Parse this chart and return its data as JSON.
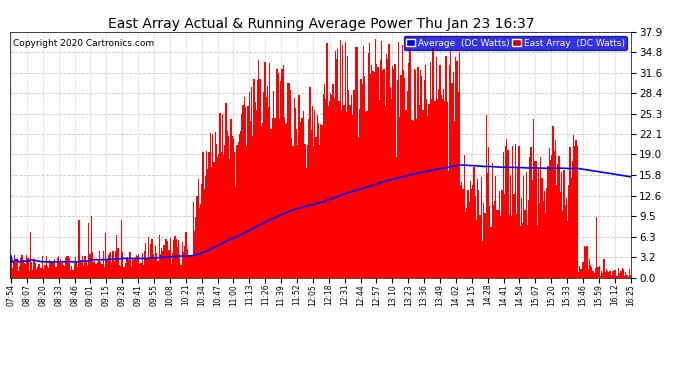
{
  "title": "East Array Actual & Running Average Power Thu Jan 23 16:37",
  "copyright": "Copyright 2020 Cartronics.com",
  "yticks": [
    0.0,
    3.2,
    6.3,
    9.5,
    12.6,
    15.8,
    19.0,
    22.1,
    25.3,
    28.4,
    31.6,
    34.8,
    37.9
  ],
  "ymax": 37.9,
  "ymin": 0.0,
  "background_color": "#ffffff",
  "grid_color": "#c8c8c8",
  "bar_color": "#ff0000",
  "avg_color": "#0000ff",
  "xtick_labels": [
    "07:54",
    "08:07",
    "08:20",
    "08:33",
    "08:46",
    "09:01",
    "09:15",
    "09:28",
    "09:41",
    "09:55",
    "10:08",
    "10:21",
    "10:34",
    "10:47",
    "11:00",
    "11:13",
    "11:26",
    "11:39",
    "11:52",
    "12:05",
    "12:18",
    "12:31",
    "12:44",
    "12:57",
    "13:10",
    "13:23",
    "13:36",
    "13:49",
    "14:02",
    "14:15",
    "14:28",
    "14:41",
    "14:54",
    "15:07",
    "15:20",
    "15:33",
    "15:46",
    "15:59",
    "16:12",
    "16:25"
  ],
  "figsize": [
    6.9,
    3.75
  ],
  "dpi": 100
}
